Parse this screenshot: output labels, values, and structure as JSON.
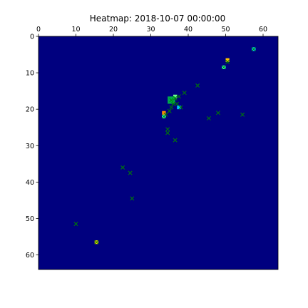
{
  "chart_data": {
    "type": "heatmap",
    "title": "Heatmap: 2018-10-07 00:00:00",
    "xlabel": "",
    "ylabel": "",
    "xlim": [
      0,
      64
    ],
    "ylim": [
      64,
      0
    ],
    "x_axis_position": "top",
    "y_axis_inverted": true,
    "x_ticks": [
      0,
      10,
      20,
      30,
      40,
      50,
      60
    ],
    "y_ticks": [
      0,
      10,
      20,
      30,
      40,
      50,
      60
    ],
    "grid": false,
    "colormap": "jet",
    "background_value_color": "#00007f",
    "heat_cells": [
      {
        "x": 57.5,
        "y": 3.5,
        "w": 1,
        "h": 1,
        "color": "#00d4ff"
      },
      {
        "x": 50.5,
        "y": 6.5,
        "w": 1,
        "h": 1,
        "color": "#ffc400"
      },
      {
        "x": 49.5,
        "y": 8.5,
        "w": 1,
        "h": 1,
        "color": "#29ffce"
      },
      {
        "x": 36.5,
        "y": 16.5,
        "w": 1,
        "h": 1,
        "color": "#6dff8a"
      },
      {
        "x": 35.5,
        "y": 17.5,
        "w": 2,
        "h": 2,
        "color": "#00a84f"
      },
      {
        "x": 37.5,
        "y": 19.5,
        "w": 1,
        "h": 1,
        "color": "#00c8ff"
      },
      {
        "x": 33.5,
        "y": 21.0,
        "w": 1,
        "h": 1,
        "color": "#ff8c00"
      },
      {
        "x": 33.5,
        "y": 22.0,
        "w": 1,
        "h": 1,
        "color": "#29ffce"
      },
      {
        "x": 15.5,
        "y": 56.5,
        "w": 1,
        "h": 1,
        "color": "#ffd200"
      }
    ],
    "markers": {
      "symbol": "x",
      "color": "#008000",
      "points": [
        [
          57.5,
          3.5
        ],
        [
          50.5,
          7.0
        ],
        [
          49.5,
          8.5
        ],
        [
          42.5,
          13.5
        ],
        [
          39.0,
          15.5
        ],
        [
          37.5,
          16.5
        ],
        [
          36.5,
          17.0
        ],
        [
          35.5,
          17.5
        ],
        [
          36.0,
          18.5
        ],
        [
          37.0,
          18.5
        ],
        [
          35.5,
          19.5
        ],
        [
          38.0,
          19.5
        ],
        [
          35.0,
          20.5
        ],
        [
          34.0,
          21.5
        ],
        [
          33.5,
          22.0
        ],
        [
          48.0,
          21.0
        ],
        [
          54.5,
          21.5
        ],
        [
          45.5,
          22.5
        ],
        [
          34.5,
          25.5
        ],
        [
          34.5,
          26.5
        ],
        [
          36.5,
          28.5
        ],
        [
          22.5,
          36.0
        ],
        [
          24.5,
          37.5
        ],
        [
          25.0,
          44.5
        ],
        [
          10.0,
          51.5
        ],
        [
          15.5,
          56.5
        ]
      ]
    }
  }
}
